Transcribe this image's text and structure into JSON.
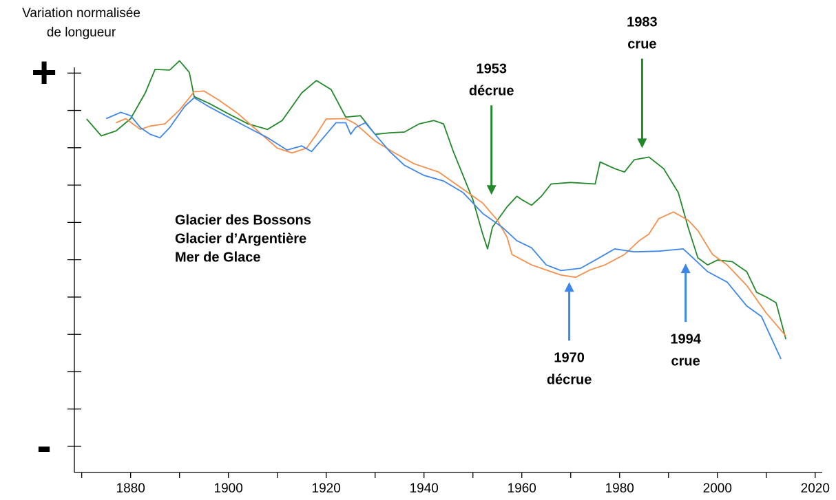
{
  "chart_data": {
    "type": "line",
    "y_label": [
      "Variation normalisée",
      "de longueur"
    ],
    "xlim": [
      1868.5,
      2022
    ],
    "xticks": [
      {
        "value": 1870,
        "label": null
      },
      1880,
      {
        "value": 1890,
        "label": null
      },
      1900,
      {
        "value": 1910,
        "label": null
      },
      1920,
      {
        "value": 1930,
        "label": null
      },
      1940,
      {
        "value": 1950,
        "label": null
      },
      1960,
      {
        "value": 1970,
        "label": null
      },
      1980,
      {
        "value": 1990,
        "label": null
      },
      2000,
      {
        "value": 2010,
        "label": null
      },
      2020
    ],
    "ylim": [
      -5.7,
      5.3
    ],
    "yticks": [
      {
        "value": 5,
        "label": "+"
      },
      {
        "value": 4,
        "label": null
      },
      {
        "value": 3,
        "label": null
      },
      {
        "value": 2,
        "label": null
      },
      {
        "value": 1,
        "label": null
      },
      {
        "value": 0,
        "label": null
      },
      {
        "value": -1,
        "label": null
      },
      {
        "value": -2,
        "label": null
      },
      {
        "value": -3,
        "label": null
      },
      {
        "value": -4,
        "label": null
      },
      {
        "value": -5,
        "label": "-"
      }
    ],
    "series": [
      {
        "name": "Glacier des Bossons",
        "color": "#22882a",
        "x": [
          1871,
          1874,
          1877,
          1880,
          1883,
          1885,
          1888,
          1890,
          1892,
          1893,
          1896,
          1900,
          1904,
          1908,
          1911,
          1915,
          1918,
          1921,
          1924,
          1927,
          1930,
          1933,
          1936,
          1939,
          1942,
          1944,
          1946,
          1950,
          1952,
          1953,
          1954,
          1957,
          1959,
          1960,
          1962,
          1964,
          1966,
          1970,
          1975,
          1976,
          1979,
          1981,
          1983,
          1986,
          1989,
          1992,
          1994,
          1996,
          1998,
          2000,
          2003,
          2006,
          2008,
          2010,
          2012,
          2014
        ],
        "values": [
          3.77,
          3.32,
          3.45,
          3.78,
          4.47,
          5.1,
          5.08,
          5.33,
          5.02,
          4.37,
          4.19,
          3.91,
          3.64,
          3.49,
          3.73,
          4.47,
          4.8,
          4.56,
          3.82,
          3.86,
          3.36,
          3.4,
          3.42,
          3.64,
          3.73,
          3.64,
          2.9,
          1.61,
          0.69,
          0.29,
          0.87,
          1.42,
          1.7,
          1.61,
          1.46,
          1.7,
          2.03,
          2.07,
          2.03,
          2.62,
          2.44,
          2.35,
          2.68,
          2.75,
          2.44,
          1.8,
          0.87,
          0.05,
          -0.14,
          -0.01,
          -0.05,
          -0.32,
          -0.87,
          -1.0,
          -1.15,
          -2.13
        ]
      },
      {
        "name": "Glacier d’Argentière",
        "color": "#f58f4c",
        "x": [
          1877,
          1879,
          1882,
          1884,
          1887,
          1890,
          1893,
          1895,
          1898,
          1902,
          1906,
          1910,
          1913,
          1916,
          1918,
          1920,
          1924,
          1926,
          1930,
          1934,
          1938,
          1943,
          1948,
          1952,
          1955,
          1957,
          1958,
          1962,
          1966,
          1968,
          1971,
          1974,
          1977,
          1981,
          1984,
          1986,
          1988,
          1991,
          1994,
          1996,
          1999,
          2002,
          2006,
          2010,
          2014
        ],
        "values": [
          3.67,
          3.78,
          3.49,
          3.58,
          3.64,
          4.01,
          4.5,
          4.52,
          4.28,
          3.91,
          3.45,
          2.99,
          2.86,
          2.99,
          3.36,
          3.77,
          3.78,
          3.64,
          3.18,
          2.86,
          2.57,
          2.35,
          1.89,
          1.52,
          1.06,
          0.6,
          0.14,
          -0.14,
          -0.32,
          -0.41,
          -0.47,
          -0.27,
          -0.14,
          0.14,
          0.51,
          0.69,
          1.1,
          1.28,
          1.06,
          0.78,
          0.14,
          -0.14,
          -0.69,
          -1.43,
          -2.04
        ]
      },
      {
        "name": "Mer de Glace",
        "color": "#3e86e8",
        "x": [
          1875,
          1878,
          1880,
          1882,
          1884,
          1886,
          1888,
          1891,
          1893,
          1896,
          1900,
          1904,
          1908,
          1912,
          1915,
          1917,
          1920,
          1922,
          1924,
          1925,
          1926,
          1928,
          1930,
          1933,
          1936,
          1940,
          1944,
          1948,
          1952,
          1956,
          1959,
          1962,
          1965,
          1968,
          1972,
          1975,
          1979,
          1983,
          1988,
          1993,
          1995,
          1998,
          2002,
          2006,
          2009,
          2013
        ],
        "values": [
          3.78,
          3.95,
          3.86,
          3.54,
          3.36,
          3.27,
          3.54,
          4.1,
          4.34,
          4.1,
          3.82,
          3.54,
          3.27,
          2.94,
          3.05,
          2.9,
          3.36,
          3.67,
          3.67,
          3.36,
          3.54,
          3.67,
          3.36,
          2.9,
          2.53,
          2.26,
          2.11,
          1.8,
          1.24,
          0.87,
          0.51,
          0.32,
          -0.14,
          -0.29,
          -0.23,
          -0.01,
          0.29,
          0.21,
          0.23,
          0.29,
          0.05,
          -0.32,
          -0.6,
          -1.24,
          -1.52,
          -2.66
        ]
      }
    ],
    "annotations": [
      {
        "lines": [
          "1953",
          "décrue"
        ],
        "x": 1953.8,
        "y": 1.74,
        "direction": "down",
        "color": "#22882a"
      },
      {
        "lines": [
          "1983",
          "crue"
        ],
        "x": 1984.6,
        "y": 2.99,
        "direction": "down",
        "color": "#22882a"
      },
      {
        "lines": [
          "1970",
          "décrue"
        ],
        "x": 1969.7,
        "y": -0.6,
        "direction": "up",
        "color": "#3e86e8"
      },
      {
        "lines": [
          "1994",
          "crue"
        ],
        "x": 1993.5,
        "y": -0.1,
        "direction": "up",
        "color": "#3e86e8"
      }
    ]
  }
}
